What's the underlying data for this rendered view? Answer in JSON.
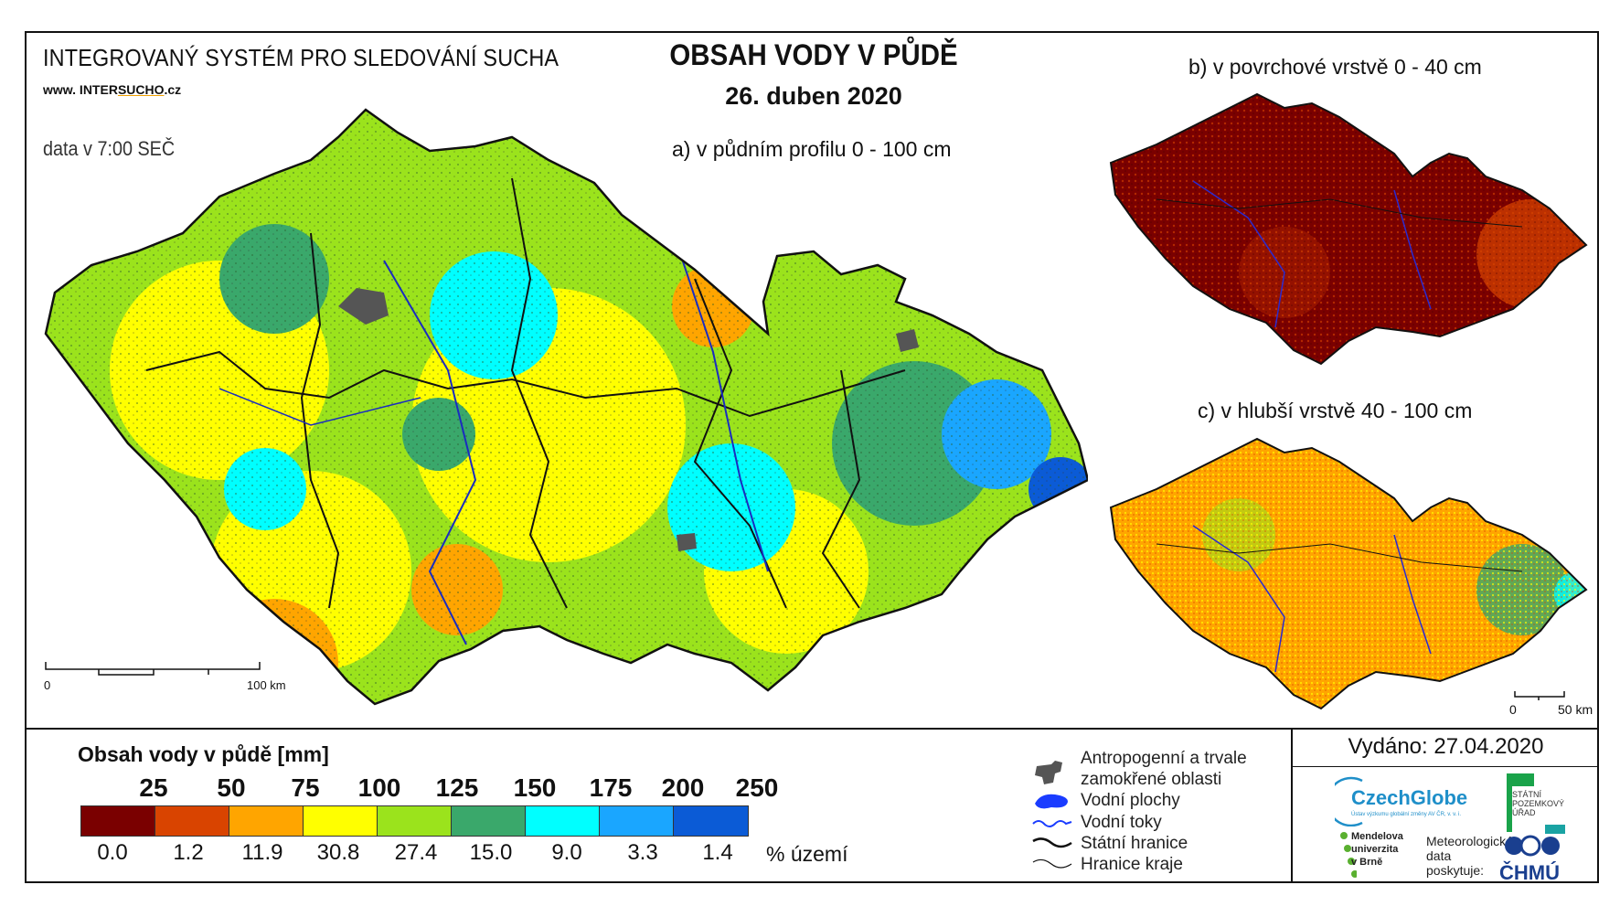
{
  "header": {
    "system_title": "INTEGROVANÝ SYSTÉM PRO SLEDOVÁNÍ SUCHA",
    "url_prefix": "www. INTER",
    "url_mid": "SUCHO",
    "url_suffix": ".cz",
    "data_time": "data v 7:00 SEČ",
    "main_title": "OBSAH VODY V PŮDĚ",
    "date": "26. duben 2020"
  },
  "maps": {
    "a": {
      "label": "a) v půdním profilu 0 - 100 cm",
      "scale_start": "0",
      "scale_end": "100 km"
    },
    "b": {
      "label": "b) v povrchové vrstvě 0 - 40 cm"
    },
    "c": {
      "label": "c) v hlubší vrstvě 40 - 100 cm",
      "scale_start": "0",
      "scale_end": "50 km"
    }
  },
  "legend": {
    "title": "Obsah vody v půdě  [mm]",
    "thresholds": [
      "25",
      "50",
      "75",
      "100",
      "125",
      "150",
      "175",
      "200",
      "250"
    ],
    "colors": [
      "#7a0000",
      "#d94400",
      "#ffa500",
      "#ffff00",
      "#9be31c",
      "#3aa86b",
      "#00ffff",
      "#1aa6ff",
      "#0b5bd6"
    ],
    "percentages": [
      "0.0",
      "1.2",
      "11.9",
      "30.8",
      "27.4",
      "15.0",
      "9.0",
      "3.3",
      "1.4"
    ],
    "unit": "% území"
  },
  "map_key": {
    "anthropogenic": "Antropogenní a trvale zamokřené oblasti",
    "water_bodies": "Vodní plochy",
    "streams": "Vodní toky",
    "state_border": "Státní hranice",
    "region_border": "Hranice kraje"
  },
  "footer": {
    "issued": "Vydáno: 27.04.2020",
    "czechglobe": "CzechGlobe",
    "czechglobe_sub": "Ústav výzkumu globální změny AV ČR, v. v. i.",
    "spu": "STÁTNÍ POZEMKOVÝ ÚŘAD",
    "mendel_1": "Mendelova",
    "mendel_2": "univerzita",
    "mendel_3": "v Brně",
    "meteo_1": "Meteorologická",
    "meteo_2": "data",
    "meteo_3": "poskytuje:",
    "chmu": "ČHMÚ"
  }
}
